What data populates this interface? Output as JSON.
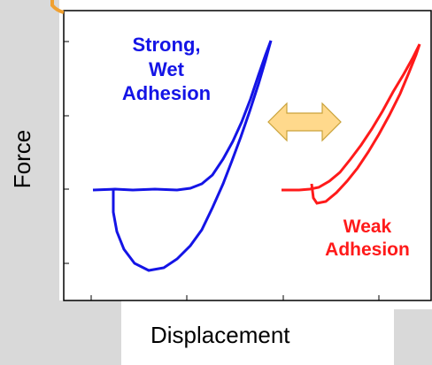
{
  "chart_data": {
    "type": "line",
    "xlabel": "Displacement",
    "ylabel": "Force",
    "grid": false,
    "annotations": [
      {
        "text": "Strong,\nWet\nAdhesion",
        "color": "#1414e6"
      },
      {
        "text": "Weak\nAdhesion",
        "color": "#ff1a1a"
      }
    ],
    "series": [
      {
        "color": "#1414e6"
      },
      {
        "color": "#ff1a1a"
      }
    ],
    "arrow_color": "#ffd98c"
  }
}
